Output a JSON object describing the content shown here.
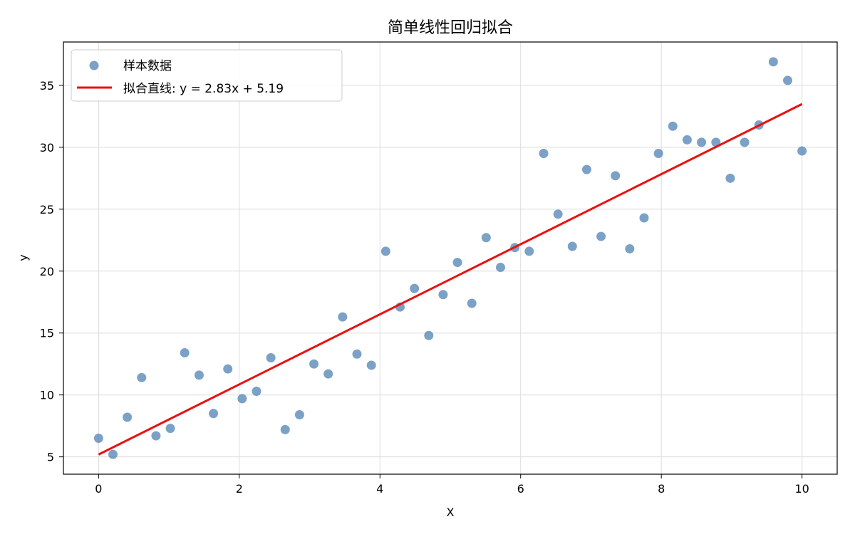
{
  "chart_data": {
    "type": "scatter",
    "title": "简单线性回归拟合",
    "xlabel": "X",
    "ylabel": "y",
    "xlim": [
      -0.5,
      10.5
    ],
    "ylim": [
      3.6,
      38.5
    ],
    "xticks": [
      0,
      2,
      4,
      6,
      8,
      10
    ],
    "yticks": [
      5,
      10,
      15,
      20,
      25,
      30,
      35
    ],
    "grid": true,
    "legend_position": "top-left",
    "series": [
      {
        "name": "样本数据",
        "kind": "scatter",
        "color": "#4f81b3",
        "x": [
          0.0,
          0.204,
          0.408,
          0.612,
          0.816,
          1.02,
          1.224,
          1.429,
          1.633,
          1.837,
          2.041,
          2.245,
          2.449,
          2.653,
          2.857,
          3.061,
          3.265,
          3.469,
          3.673,
          3.878,
          4.082,
          4.286,
          4.49,
          4.694,
          4.898,
          5.102,
          5.306,
          5.51,
          5.714,
          5.918,
          6.122,
          6.327,
          6.531,
          6.735,
          6.939,
          7.143,
          7.347,
          7.551,
          7.755,
          7.959,
          8.163,
          8.367,
          8.571,
          8.776,
          8.98,
          9.184,
          9.388,
          9.592,
          9.796,
          10.0
        ],
        "y": [
          6.5,
          5.2,
          8.2,
          11.4,
          6.7,
          7.3,
          13.4,
          11.6,
          8.5,
          12.1,
          9.7,
          10.3,
          13.0,
          7.2,
          8.4,
          12.5,
          11.7,
          16.3,
          13.3,
          12.4,
          21.6,
          17.1,
          18.6,
          14.8,
          18.1,
          20.7,
          17.4,
          22.7,
          20.3,
          21.9,
          21.6,
          29.5,
          24.6,
          22.0,
          28.2,
          22.8,
          27.7,
          21.8,
          24.3,
          29.5,
          31.7,
          30.6,
          30.4,
          30.4,
          27.5,
          30.4,
          31.8,
          36.9,
          35.4,
          29.7
        ]
      },
      {
        "name": "拟合直线: y = 2.83x + 5.19",
        "kind": "line",
        "color": "#e8110f",
        "slope": 2.83,
        "intercept": 5.19,
        "x": [
          0,
          10
        ],
        "y": [
          5.19,
          33.49
        ]
      }
    ]
  }
}
